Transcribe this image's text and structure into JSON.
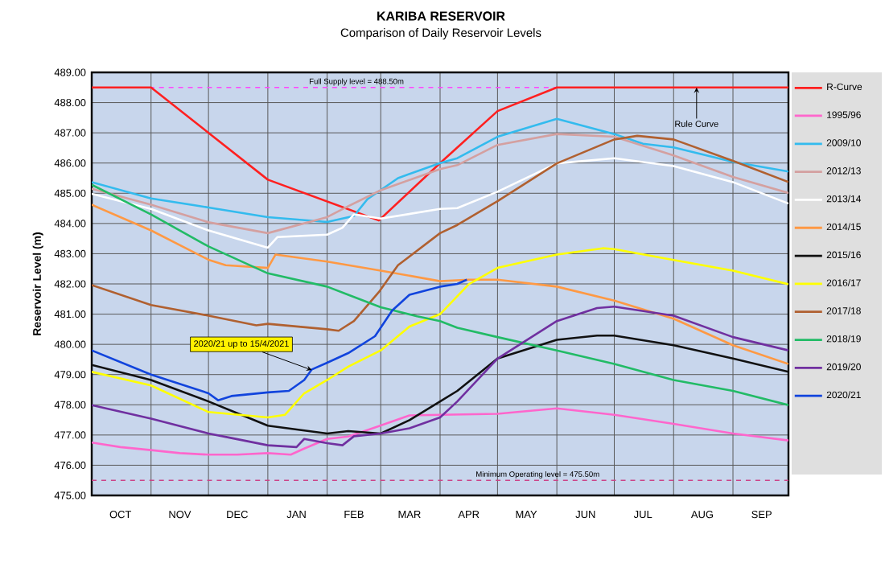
{
  "chart_data": {
    "type": "line",
    "title": "KARIBA RESERVOIR",
    "subtitle": "Comparison of Daily Reservoir Levels",
    "ylabel": "Reservoir Level (m)",
    "xlim": [
      "2020-10-01",
      "2021-09-30"
    ],
    "ylim": [
      475,
      489
    ],
    "xticks": [
      {
        "value": "2020-10-01",
        "label": null
      },
      {
        "value": "2020-10-16",
        "label": "OCT"
      },
      {
        "value": "2020-11-01",
        "label": null
      },
      {
        "value": "2020-11-16",
        "label": "NOV"
      },
      {
        "value": "2020-12-01",
        "label": null
      },
      {
        "value": "2020-12-16",
        "label": "DEC"
      },
      {
        "value": "2021-01-01",
        "label": null
      },
      {
        "value": "2021-01-16",
        "label": "JAN"
      },
      {
        "value": "2021-02-01",
        "label": null
      },
      {
        "value": "2021-02-15",
        "label": "FEB"
      },
      {
        "value": "2021-03-01",
        "label": null
      },
      {
        "value": "2021-03-16",
        "label": "MAR"
      },
      {
        "value": "2021-04-01",
        "label": null
      },
      {
        "value": "2021-04-16",
        "label": "APR"
      },
      {
        "value": "2021-05-01",
        "label": null
      },
      {
        "value": "2021-05-16",
        "label": "MAY"
      },
      {
        "value": "2021-06-01",
        "label": null
      },
      {
        "value": "2021-06-16",
        "label": "JUN"
      },
      {
        "value": "2021-07-01",
        "label": null
      },
      {
        "value": "2021-07-16",
        "label": "JUL"
      },
      {
        "value": "2021-08-01",
        "label": null
      },
      {
        "value": "2021-08-16",
        "label": "AUG"
      },
      {
        "value": "2021-09-01",
        "label": null
      },
      {
        "value": "2021-09-16",
        "label": "SEP"
      }
    ],
    "yticks": [
      {
        "value": 475,
        "label": "475.00"
      },
      {
        "value": 476,
        "label": "476.00"
      },
      {
        "value": 477,
        "label": "477.00"
      },
      {
        "value": 478,
        "label": "478.00"
      },
      {
        "value": 479,
        "label": "479.00"
      },
      {
        "value": 480,
        "label": "480.00"
      },
      {
        "value": 481,
        "label": "481.00"
      },
      {
        "value": 482,
        "label": "482.00"
      },
      {
        "value": 483,
        "label": "483.00"
      },
      {
        "value": 484,
        "label": "484.00"
      },
      {
        "value": 485,
        "label": "485.00"
      },
      {
        "value": 486,
        "label": "486.00"
      },
      {
        "value": 487,
        "label": "487.00"
      },
      {
        "value": 488,
        "label": "488.00"
      },
      {
        "value": 489,
        "label": "489.00"
      }
    ],
    "grid": true,
    "legend": "right",
    "marker": "none",
    "ref_lines": [
      {
        "axis": "y",
        "value": 488.5,
        "label": "Full Supply level = 488.50m",
        "color": "#ff44ff",
        "line_style": "dashed"
      },
      {
        "axis": "y",
        "value": 475.5,
        "label": "Minimum Operating level = 475.50m",
        "color": "#cc4488",
        "line_style": "dashed"
      }
    ],
    "annotations": [
      {
        "text": "Rule Curve",
        "x": "2021-08-13",
        "y": 488.5
      },
      {
        "text": "2020/21 up to 15/4/2021",
        "x": "2021-01-24",
        "y": 479.15
      }
    ],
    "series": [
      {
        "name": "R-Curve",
        "color": "#ff2020",
        "x": [
          "2020-10-01",
          "2020-11-01",
          "2021-01-01",
          "2021-02-28",
          "2021-04-01",
          "2021-05-01",
          "2021-06-01",
          "2021-09-30"
        ],
        "values": [
          488.5,
          488.5,
          485.45,
          484.1,
          486.0,
          487.72,
          488.5,
          488.5
        ]
      },
      {
        "name": "1995/96",
        "color": "#ff66cc",
        "x": [
          "2020-10-01",
          "2020-10-16",
          "2020-11-01",
          "2020-11-16",
          "2020-12-01",
          "2020-12-16",
          "2021-01-01",
          "2021-01-13",
          "2021-01-20",
          "2021-02-01",
          "2021-02-12",
          "2021-02-26",
          "2021-03-16",
          "2021-04-01",
          "2021-05-01",
          "2021-06-01",
          "2021-07-01",
          "2021-08-01",
          "2021-09-01",
          "2021-09-30"
        ],
        "values": [
          476.75,
          476.6,
          476.5,
          476.4,
          476.35,
          476.35,
          476.4,
          476.35,
          476.55,
          476.87,
          476.95,
          477.25,
          477.65,
          477.67,
          477.7,
          477.88,
          477.67,
          477.37,
          477.05,
          476.82
        ]
      },
      {
        "name": "2009/10",
        "color": "#33bbee",
        "x": [
          "2020-10-01",
          "2020-11-01",
          "2020-12-01",
          "2021-01-01",
          "2021-02-01",
          "2021-02-15",
          "2021-02-22",
          "2021-03-10",
          "2021-04-01",
          "2021-04-10",
          "2021-05-01",
          "2021-06-01",
          "2021-07-01",
          "2021-07-16",
          "2021-08-01",
          "2021-09-01",
          "2021-09-30"
        ],
        "values": [
          485.37,
          484.83,
          484.53,
          484.21,
          484.05,
          484.25,
          484.8,
          485.5,
          486.0,
          486.16,
          486.87,
          487.46,
          486.96,
          486.64,
          486.52,
          486.04,
          485.72
        ]
      },
      {
        "name": "2012/13",
        "color": "#d4a0a0",
        "x": [
          "2020-10-01",
          "2020-11-01",
          "2020-12-01",
          "2021-01-01",
          "2021-02-01",
          "2021-02-12",
          "2021-03-01",
          "2021-04-01",
          "2021-04-10",
          "2021-05-01",
          "2021-06-01",
          "2021-07-01",
          "2021-08-01",
          "2021-09-01",
          "2021-09-30"
        ],
        "values": [
          485.15,
          484.62,
          484.04,
          483.68,
          484.21,
          484.57,
          485.1,
          485.8,
          485.93,
          486.6,
          486.96,
          486.87,
          486.25,
          485.54,
          485.01
        ]
      },
      {
        "name": "2013/14",
        "color": "#ffffff",
        "x": [
          "2020-10-01",
          "2020-11-01",
          "2020-12-01",
          "2021-01-01",
          "2021-01-06",
          "2021-02-01",
          "2021-02-09",
          "2021-02-15",
          "2021-03-01",
          "2021-04-01",
          "2021-04-10",
          "2021-05-01",
          "2021-06-01",
          "2021-07-01",
          "2021-08-01",
          "2021-09-01",
          "2021-09-30"
        ],
        "values": [
          484.98,
          484.48,
          483.77,
          483.2,
          483.55,
          483.63,
          483.86,
          484.3,
          484.16,
          484.48,
          484.51,
          485.05,
          485.99,
          486.16,
          485.9,
          485.37,
          484.66
        ]
      },
      {
        "name": "2014/15",
        "color": "#ff9944",
        "x": [
          "2020-10-01",
          "2020-11-01",
          "2020-12-01",
          "2020-12-10",
          "2021-01-01",
          "2021-01-05",
          "2021-02-01",
          "2021-03-01",
          "2021-04-01",
          "2021-04-16",
          "2021-05-01",
          "2021-06-01",
          "2021-07-01",
          "2021-08-01",
          "2021-09-01",
          "2021-09-30"
        ],
        "values": [
          484.62,
          483.77,
          482.8,
          482.62,
          482.53,
          482.97,
          482.74,
          482.44,
          482.09,
          482.14,
          482.14,
          481.91,
          481.45,
          480.85,
          479.97,
          479.35
        ]
      },
      {
        "name": "2015/16",
        "color": "#111111",
        "x": [
          "2020-10-01",
          "2020-11-01",
          "2020-12-01",
          "2021-01-01",
          "2021-02-01",
          "2021-02-12",
          "2021-03-01",
          "2021-03-16",
          "2021-04-01",
          "2021-04-10",
          "2021-05-01",
          "2021-06-01",
          "2021-06-22",
          "2021-07-01",
          "2021-08-01",
          "2021-09-01",
          "2021-09-30"
        ],
        "values": [
          479.32,
          478.82,
          478.11,
          477.31,
          477.05,
          477.13,
          477.05,
          477.49,
          478.11,
          478.46,
          479.53,
          480.15,
          480.29,
          480.29,
          479.97,
          479.53,
          479.09
        ]
      },
      {
        "name": "2016/17",
        "color": "#ffff00",
        "x": [
          "2020-10-01",
          "2020-11-01",
          "2020-12-01",
          "2021-01-01",
          "2021-01-10",
          "2021-01-20",
          "2021-02-01",
          "2021-02-12",
          "2021-03-01",
          "2021-03-16",
          "2021-04-01",
          "2021-04-16",
          "2021-05-01",
          "2021-06-01",
          "2021-06-25",
          "2021-07-01",
          "2021-08-01",
          "2021-09-01",
          "2021-09-30"
        ],
        "values": [
          479.09,
          478.64,
          477.76,
          477.58,
          477.67,
          478.38,
          478.82,
          479.26,
          479.8,
          480.59,
          481.0,
          481.99,
          482.53,
          482.97,
          483.18,
          483.15,
          482.79,
          482.44,
          481.99
        ]
      },
      {
        "name": "2017/18",
        "color": "#b06030",
        "x": [
          "2020-10-01",
          "2020-11-01",
          "2020-12-01",
          "2020-12-26",
          "2021-01-01",
          "2021-02-01",
          "2021-02-07",
          "2021-02-15",
          "2021-02-28",
          "2021-03-10",
          "2021-04-01",
          "2021-04-10",
          "2021-05-01",
          "2021-06-01",
          "2021-07-01",
          "2021-07-13",
          "2021-08-01",
          "2021-09-01",
          "2021-09-30"
        ],
        "values": [
          481.96,
          481.3,
          480.95,
          480.63,
          480.68,
          480.5,
          480.45,
          480.77,
          481.73,
          482.62,
          483.68,
          483.95,
          484.74,
          485.99,
          486.78,
          486.9,
          486.78,
          486.07,
          485.37
        ]
      },
      {
        "name": "2018/19",
        "color": "#22bb66",
        "x": [
          "2020-10-01",
          "2020-11-01",
          "2020-12-01",
          "2021-01-01",
          "2021-02-01",
          "2021-02-12",
          "2021-03-01",
          "2021-03-20",
          "2021-04-01",
          "2021-04-10",
          "2021-05-01",
          "2021-06-01",
          "2021-07-01",
          "2021-08-01",
          "2021-09-01",
          "2021-09-30"
        ],
        "values": [
          485.28,
          484.3,
          483.24,
          482.35,
          481.91,
          481.64,
          481.23,
          480.93,
          480.77,
          480.55,
          480.24,
          479.8,
          479.35,
          478.82,
          478.46,
          477.99
        ]
      },
      {
        "name": "2019/20",
        "color": "#7030a0",
        "x": [
          "2020-10-01",
          "2020-11-01",
          "2020-12-01",
          "2020-12-13",
          "2021-01-01",
          "2021-01-16",
          "2021-01-20",
          "2021-02-01",
          "2021-02-09",
          "2021-02-15",
          "2021-03-01",
          "2021-03-16",
          "2021-04-01",
          "2021-04-10",
          "2021-05-01",
          "2021-06-01",
          "2021-06-22",
          "2021-07-01",
          "2021-08-01",
          "2021-09-01",
          "2021-09-30"
        ],
        "values": [
          477.99,
          477.54,
          477.05,
          476.9,
          476.66,
          476.6,
          476.87,
          476.73,
          476.66,
          476.96,
          477.05,
          477.22,
          477.58,
          478.11,
          479.53,
          480.77,
          481.2,
          481.25,
          480.95,
          480.24,
          479.8
        ]
      },
      {
        "name": "2020/21",
        "color": "#1144dd",
        "x": [
          "2020-10-01",
          "2020-11-01",
          "2020-12-01",
          "2020-12-06",
          "2020-12-13",
          "2021-01-01",
          "2021-01-12",
          "2021-01-20",
          "2021-01-24",
          "2021-02-01",
          "2021-02-12",
          "2021-02-26",
          "2021-03-07",
          "2021-03-16",
          "2021-04-01",
          "2021-04-10",
          "2021-04-15"
        ],
        "values": [
          479.8,
          479.0,
          478.38,
          478.15,
          478.29,
          478.41,
          478.46,
          478.82,
          479.17,
          479.39,
          479.71,
          480.27,
          481.12,
          481.64,
          481.91,
          482.0,
          482.14
        ]
      }
    ]
  }
}
